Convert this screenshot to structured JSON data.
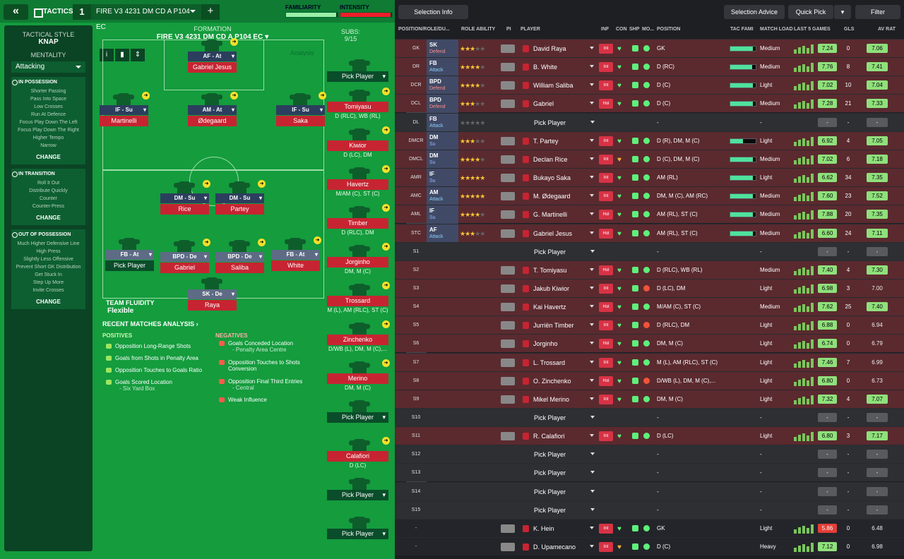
{
  "topbar": {
    "back": "«",
    "tactics": "TACTICS",
    "tactic_number": "1",
    "tactic_name": "FIRE V3 4231 DM CD A P104 EC",
    "plus": "+",
    "familiarity_label": "FAMILIARITY",
    "familiarity_pct": 0.97,
    "intensity_label": "INTENSITY",
    "intensity_pct": 0.97
  },
  "side": {
    "style_h": "TACTICAL STYLE",
    "style_v": "KNAP",
    "mentality_h": "MENTALITY",
    "mentality_v": "Attacking",
    "in_poss_t": "IN POSSESSION",
    "in_poss": [
      "Shorter Passing",
      "Pass Into Space",
      "Low Crosses",
      "Run At Defence",
      "Focus Play Down The Left",
      "Focus Play Down The Right",
      "Higher Tempo",
      "Narrow"
    ],
    "in_trans_t": "IN TRANSITION",
    "in_trans": [
      "Roll It Out",
      "Distribute Quickly",
      "Counter",
      "Counter-Press"
    ],
    "out_poss_t": "OUT OF POSSESSION",
    "out_poss": [
      "Much Higher Defensive Line",
      "High Press",
      "Slightly Less Offensive",
      "Prevent Short GK Distribution",
      "Get Stuck In",
      "Step Up More",
      "Invite Crosses"
    ],
    "change": "CHANGE"
  },
  "formation": {
    "title": "FORMATION",
    "name": "FIRE V3 4231 DM CD A P104 EC",
    "analysis": "Analysis",
    "subs_h": "SUBS:",
    "subs_count": "9/15"
  },
  "players": [
    {
      "role": "AF - At",
      "name": "Gabriel Jesus"
    },
    {
      "role": "IF - Su",
      "name": "Martinelli"
    },
    {
      "role": "AM - At",
      "name": "Ødegaard"
    },
    {
      "role": "IF - Su",
      "name": "Saka"
    },
    {
      "role": "DM - Su",
      "name": "Rice"
    },
    {
      "role": "DM - Su",
      "name": "Partey"
    },
    {
      "role": "FB - At",
      "name": "Pick Player"
    },
    {
      "role": "BPD - De",
      "name": "Gabriel"
    },
    {
      "role": "BPD - De",
      "name": "Saliba"
    },
    {
      "role": "FB - At",
      "name": "White"
    },
    {
      "role": "SK - De",
      "name": "Raya"
    }
  ],
  "subs": [
    {
      "name": "Pick Player",
      "pos": ""
    },
    {
      "name": "Tomiyasu",
      "pos": "D (RLC), WB (RL)"
    },
    {
      "name": "Kiwior",
      "pos": "D (LC), DM"
    },
    {
      "name": "Havertz",
      "pos": "M/AM (C), ST (C)"
    },
    {
      "name": "Timber",
      "pos": "D (RLC), DM"
    },
    {
      "name": "Jorginho",
      "pos": "DM, M (C)"
    },
    {
      "name": "Trossard",
      "pos": "M (L), AM (RLC), ST (C)"
    },
    {
      "name": "Zinchenko",
      "pos": "D/WB (L), DM, M (C),..."
    },
    {
      "name": "Merino",
      "pos": "DM, M (C)"
    },
    {
      "name": "Pick Player",
      "pos": ""
    },
    {
      "name": "Calafiori",
      "pos": "D (LC)"
    },
    {
      "name": "Pick Player",
      "pos": ""
    },
    {
      "name": "Pick Player",
      "pos": ""
    }
  ],
  "analysis": {
    "fluidity_h": "TEAM FLUIDITY",
    "fluidity_v": "Flexible",
    "recent": "RECENT MATCHES ANALYSIS ›",
    "pos_h": "POSITIVES",
    "neg_h": "NEGATIVES",
    "positives": [
      "Opposition Long-Range Shots",
      "Goals from Shots in Penalty Area",
      "Opposition Touches to Goals Ratio",
      "Goals Scored Location"
    ],
    "pos_sub": "- Six Yard Box",
    "negatives": [
      "Goals Conceded Location",
      "Opposition Touches to Shots Conversion",
      "Opposition Final Third Entries",
      "Weak Influence"
    ],
    "neg_subs": [
      "- Penalty Area Centre",
      "",
      "- Central",
      ""
    ]
  },
  "right": {
    "selection_info": "Selection Info",
    "selection_advice": "Selection Advice",
    "quick_pick": "Quick Pick",
    "filter": "Filter",
    "headers": [
      "POSITION/ROLE/DU...",
      "ROLE ABILITY",
      "PI",
      "PLAYER",
      "INF",
      "CON",
      "SHP",
      "MO...",
      "POSITION",
      "TAC FAMI",
      "MATCH LOAD",
      "LAST 5 GAMES",
      "GLS",
      "AV RAT"
    ],
    "rows": [
      {
        "pos": "GK",
        "role": "SK",
        "duty": "Defend",
        "stars": 3,
        "player": "David Raya",
        "num": "22",
        "inf": "Int",
        "position": "GK",
        "tac": 0.9,
        "load": "Medium",
        "rating": "7.24",
        "gls": "0",
        "av": "7.06",
        "red": true
      },
      {
        "pos": "DR",
        "role": "FB",
        "duty": "Attack",
        "stars": 4,
        "player": "B. White",
        "inf": "Int",
        "position": "D (RC)",
        "tac": 0.85,
        "load": "Medium",
        "rating": "7.76",
        "gls": "8",
        "av": "7.41",
        "red": true
      },
      {
        "pos": "DCR",
        "role": "BPD",
        "duty": "Defend",
        "stars": 4,
        "player": "William Saliba",
        "inf": "Int",
        "position": "D (C)",
        "tac": 0.9,
        "load": "Light",
        "rating": "7.02",
        "gls": "10",
        "av": "7.04",
        "red": true
      },
      {
        "pos": "DCL",
        "role": "BPD",
        "duty": "Defend",
        "stars": 3,
        "player": "Gabriel",
        "inf": "Hol",
        "position": "D (C)",
        "tac": 0.9,
        "load": "Medium",
        "rating": "7.28",
        "gls": "21",
        "av": "7.33",
        "red": true
      },
      {
        "pos": "DL",
        "role": "FB",
        "duty": "Attack",
        "stars": 0,
        "player": "Pick Player",
        "inf": "",
        "position": "-",
        "tac": 0,
        "load": "-",
        "rating": "-",
        "gls": "-",
        "av": "-",
        "red": false,
        "pick": true
      },
      {
        "pos": "DMCR",
        "role": "DM",
        "duty": "Su",
        "stars": 3,
        "player": "T. Partey",
        "inf": "Int",
        "position": "D (R), DM, M (C)",
        "tac": 0.5,
        "load": "Light",
        "rating": "6.92",
        "gls": "4",
        "av": "7.05",
        "red": true
      },
      {
        "pos": "DMCL",
        "role": "DM",
        "duty": "Su",
        "stars": 4,
        "player": "Declan Rice",
        "inf": "Int",
        "position": "D (C), DM, M (C)",
        "tac": 0.9,
        "load": "Medium",
        "rating": "7.02",
        "gls": "6",
        "av": "7.18",
        "red": true,
        "heartY": true
      },
      {
        "pos": "AMR",
        "role": "IF",
        "duty": "Su",
        "stars": 5,
        "player": "Bukayo Saka",
        "inf": "Int",
        "position": "AM (RL)",
        "tac": 0.9,
        "load": "Light",
        "rating": "6.62",
        "gls": "34",
        "av": "7.35",
        "red": true
      },
      {
        "pos": "AMC",
        "role": "AM",
        "duty": "Attack",
        "stars": 5,
        "player": "M. Ødegaard",
        "inf": "Int",
        "position": "DM, M (C), AM (RC)",
        "tac": 0.9,
        "load": "Medium",
        "rating": "7.60",
        "gls": "23",
        "av": "7.52",
        "red": true
      },
      {
        "pos": "AML",
        "role": "IF",
        "duty": "Su",
        "stars": 4,
        "player": "G. Martinelli",
        "inf": "Hol",
        "position": "AM (RL), ST (C)",
        "tac": 0.9,
        "load": "Medium",
        "rating": "7.88",
        "gls": "20",
        "av": "7.35",
        "red": true
      },
      {
        "pos": "STC",
        "role": "AF",
        "duty": "Attack",
        "stars": 3,
        "player": "Gabriel Jesus",
        "inf": "Hol",
        "position": "AM (RL), ST (C)",
        "tac": 0.9,
        "load": "Medium",
        "rating": "6.60",
        "gls": "24",
        "av": "7.11",
        "red": true
      },
      {
        "pos": "S1",
        "player": "Pick Player",
        "pick": true,
        "position": "-",
        "load": "-",
        "rating": "-",
        "gls": "-",
        "av": "-"
      },
      {
        "pos": "S2",
        "player": "T. Tomiyasu",
        "inf": "Hol",
        "position": "D (RLC), WB (RL)",
        "load": "Medium",
        "rating": "7.40",
        "gls": "4",
        "av": "7.30",
        "red": true
      },
      {
        "pos": "S3",
        "player": "Jakub Kiwior",
        "inf": "Int",
        "position": "D (LC), DM",
        "load": "Light",
        "rating": "6.98",
        "gls": "3",
        "av": "7.00",
        "red": true,
        "avnb": true,
        "mo": "r"
      },
      {
        "pos": "S4",
        "player": "Kai Havertz",
        "inf": "Hol",
        "position": "M/AM (C), ST (C)",
        "load": "Medium",
        "rating": "7.62",
        "gls": "25",
        "av": "7.40",
        "red": true
      },
      {
        "pos": "S5",
        "player": "Jurriën Timber",
        "inf": "Int",
        "position": "D (RLC), DM",
        "load": "Light",
        "rating": "6.88",
        "gls": "0",
        "av": "6.94",
        "red": true,
        "avnb": true,
        "mo": "r"
      },
      {
        "pos": "S6",
        "player": "Jorginho",
        "inf": "Hol",
        "position": "DM, M (C)",
        "load": "Light",
        "rating": "6.74",
        "gls": "0",
        "av": "6.79",
        "red": true,
        "avnb": true
      },
      {
        "pos": "S7",
        "player": "L. Trossard",
        "inf": "Int",
        "position": "M (L), AM (RLC), ST (C)",
        "load": "Light",
        "rating": "7.46",
        "gls": "7",
        "av": "6.99",
        "red": true,
        "avnb": true
      },
      {
        "pos": "S8",
        "player": "O. Zinchenko",
        "inf": "Hol",
        "position": "D/WB (L), DM, M (C),...",
        "load": "Light",
        "rating": "6.80",
        "gls": "0",
        "av": "6.73",
        "red": true,
        "avnb": true,
        "mo": "r"
      },
      {
        "pos": "S9",
        "player": "Mikel Merino",
        "inf": "Int",
        "position": "DM, M (C)",
        "load": "Light",
        "rating": "7.32",
        "gls": "4",
        "av": "7.07",
        "red": true
      },
      {
        "pos": "S10",
        "player": "Pick Player",
        "pick": true,
        "position": "-",
        "load": "-",
        "rating": "-",
        "gls": "-",
        "av": "-"
      },
      {
        "pos": "S11",
        "player": "R. Calafiori",
        "inf": "Int",
        "position": "D (LC)",
        "load": "Light",
        "rating": "6.80",
        "gls": "3",
        "av": "7.17",
        "red": true
      },
      {
        "pos": "S12",
        "player": "Pick Player",
        "pick": true,
        "position": "-",
        "load": "-",
        "rating": "-",
        "gls": "-",
        "av": "-"
      },
      {
        "pos": "S13",
        "player": "Pick Player",
        "pick": true,
        "position": "-",
        "load": "-",
        "rating": "-",
        "gls": "-",
        "av": "-"
      },
      {
        "pos": "S14",
        "player": "Pick Player",
        "pick": true,
        "position": "-",
        "load": "-",
        "rating": "-",
        "gls": "-",
        "av": "-"
      },
      {
        "pos": "S15",
        "player": "Pick Player",
        "pick": true,
        "position": "-",
        "load": "-",
        "rating": "-",
        "gls": "-",
        "av": "-"
      },
      {
        "pos": "-",
        "player": "K. Hein",
        "inf": "Int",
        "position": "GK",
        "load": "Light",
        "rating": "5.86",
        "gls": "0",
        "av": "6.48",
        "dark": true,
        "ratingRed": true,
        "avnb": true
      },
      {
        "pos": "-",
        "player": "D. Upamecano",
        "inf": "Int",
        "position": "D (C)",
        "load": "Heavy",
        "rating": "7.12",
        "gls": "0",
        "av": "6.98",
        "dark": true,
        "avnb": true,
        "heartY": true
      }
    ]
  }
}
